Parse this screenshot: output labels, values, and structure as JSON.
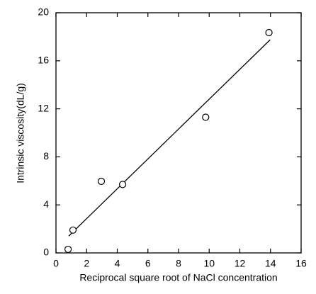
{
  "chart_data": {
    "type": "scatter",
    "x_label": "Reciprocal square root of NaCl concentration",
    "y_label": "Intrinsic viscosity(dL/g)",
    "xlim": [
      0,
      16
    ],
    "xticks": [
      0,
      2,
      4,
      6,
      8,
      10,
      12,
      14,
      16
    ],
    "ylim": [
      0,
      20
    ],
    "yticks": [
      0,
      4,
      8,
      12,
      16,
      20
    ],
    "series": [
      {
        "color": "#000000",
        "x": [
          0.79,
          1.11,
          2.96,
          4.35,
          9.77,
          13.9
        ],
        "values": [
          0.3,
          1.9,
          5.96,
          5.7,
          11.3,
          18.35
        ]
      }
    ],
    "fit": {
      "color": "#000000",
      "x": [
        0.83,
        13.98
      ],
      "values": [
        1.4,
        17.75
      ]
    }
  }
}
